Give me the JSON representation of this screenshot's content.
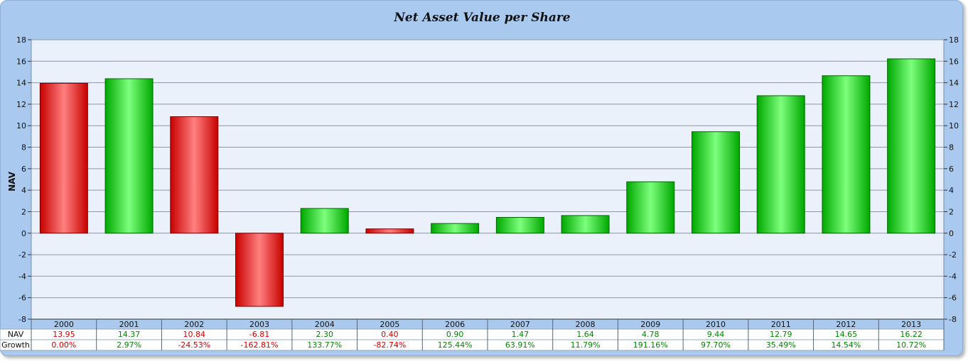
{
  "chart_data": {
    "type": "bar",
    "title": "Net Asset Value per Share",
    "ylabel": "NAV",
    "xlabel": "",
    "ylim": [
      -8,
      18
    ],
    "yticks": [
      18,
      16,
      14,
      12,
      10,
      8,
      6,
      4,
      2,
      0,
      -2,
      -4,
      -6,
      -8
    ],
    "grid": true,
    "categories": [
      "2000",
      "2001",
      "2002",
      "2003",
      "2004",
      "2005",
      "2006",
      "2007",
      "2008",
      "2009",
      "2010",
      "2011",
      "2012",
      "2013"
    ],
    "values": [
      13.95,
      14.37,
      10.84,
      -6.81,
      2.3,
      0.4,
      0.9,
      1.47,
      1.64,
      4.78,
      9.44,
      12.79,
      14.65,
      16.22
    ],
    "bar_colors": [
      "red",
      "green",
      "red",
      "red",
      "green",
      "red",
      "green",
      "green",
      "green",
      "green",
      "green",
      "green",
      "green",
      "green"
    ],
    "table": {
      "rows": [
        {
          "label": "NAV",
          "cells": [
            "13.95",
            "14.37",
            "10.84",
            "-6.81",
            "2.30",
            "0.40",
            "0.90",
            "1.47",
            "1.64",
            "4.78",
            "9.44",
            "12.79",
            "14.65",
            "16.22"
          ]
        },
        {
          "label": "Growth",
          "cells": [
            "0.00%",
            "2.97%",
            "-24.53%",
            "-162.81%",
            "133.77%",
            "-82.74%",
            "125.44%",
            "63.91%",
            "11.79%",
            "191.16%",
            "97.70%",
            "35.49%",
            "14.54%",
            "10.72%"
          ]
        }
      ]
    }
  },
  "colors": {
    "positive": "#00cc00",
    "negative": "#e00000",
    "text_positive": "#008800",
    "text_negative": "#dd0000",
    "plot_background": "#eaf1fa",
    "frame_background": "#a9c9ef"
  }
}
